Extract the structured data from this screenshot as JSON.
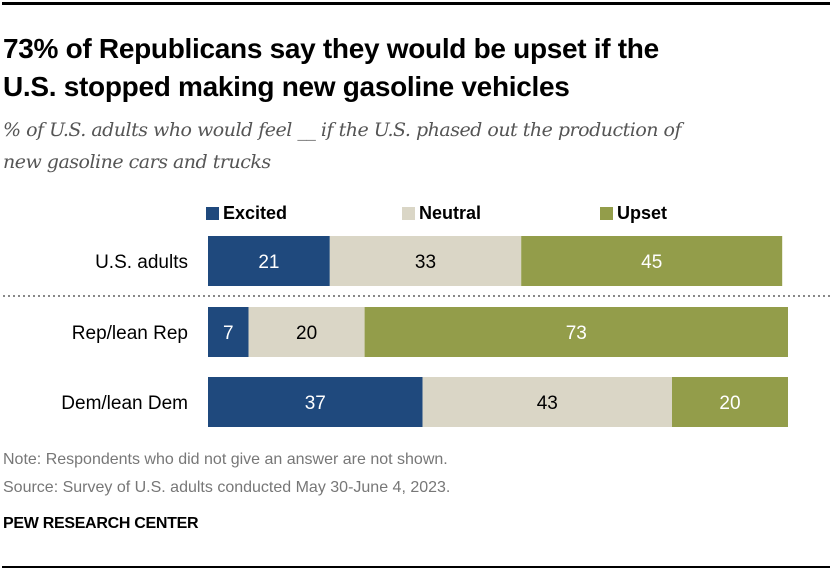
{
  "chart_data": {
    "type": "bar",
    "orientation": "horizontal",
    "stacked": true,
    "title": "73% of Republicans say they would be upset if the U.S. stopped making new gasoline vehicles",
    "subtitle": "% of U.S. adults who would feel __ if the U.S. phased out the production of new gasoline cars and trucks",
    "xlabel": "",
    "ylabel": "",
    "xlim": [
      0,
      100
    ],
    "grid": false,
    "legend_position": "top",
    "categories": [
      "U.S. adults",
      "Rep/lean Rep",
      "Dem/lean Dem"
    ],
    "series": [
      {
        "name": "Excited",
        "color": "#1f497d",
        "label_color": "#ffffff",
        "values": [
          21,
          7,
          37
        ]
      },
      {
        "name": "Neutral",
        "color": "#dad6c6",
        "label_color": "#000000",
        "values": [
          33,
          20,
          43
        ]
      },
      {
        "name": "Upset",
        "color": "#939d4a",
        "label_color": "#ffffff",
        "values": [
          45,
          73,
          20
        ]
      }
    ],
    "separator_after_row": 0
  },
  "title_lines": [
    "73% of Republicans say they would be upset if the",
    "U.S. stopped making new gasoline vehicles"
  ],
  "subtitle_lines": [
    "% of U.S. adults who would feel __ if the U.S. phased out the production of",
    "new gasoline cars and trucks"
  ],
  "note": "Note: Respondents who did not give an answer are not shown.",
  "source": "Source: Survey of U.S. adults conducted May 30-June 4, 2023.",
  "brand": "PEW RESEARCH CENTER"
}
